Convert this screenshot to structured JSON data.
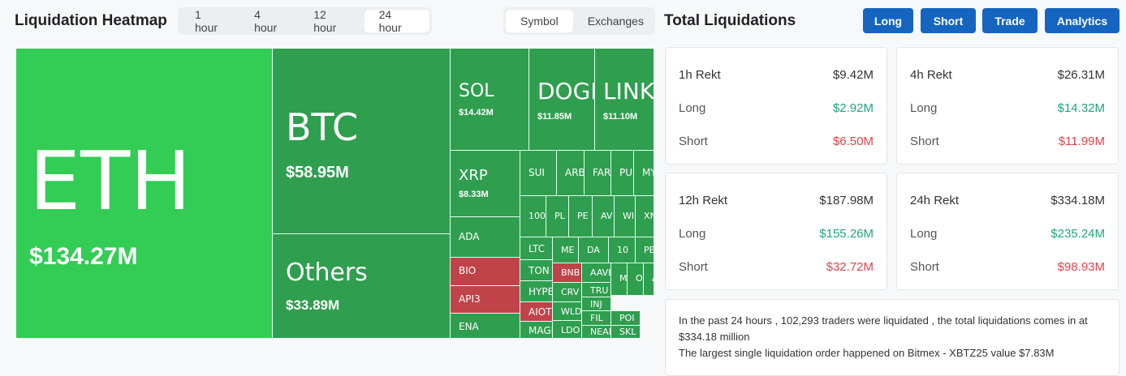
{
  "header": {
    "title": "Liquidation Heatmap",
    "time_tabs": [
      "1 hour",
      "4 hour",
      "12 hour",
      "24 hour"
    ],
    "view_tabs": [
      "Symbol",
      "Exchanges"
    ]
  },
  "heatmap": {
    "cells": [
      {
        "symbol": "ETH",
        "value": "$134.27M"
      },
      {
        "symbol": "BTC",
        "value": "$58.95M"
      },
      {
        "symbol": "Others",
        "value": "$33.89M"
      },
      {
        "symbol": "SOL",
        "value": "$14.42M"
      },
      {
        "symbol": "DOGE",
        "value": "$11.85M"
      },
      {
        "symbol": "LINK",
        "value": "$11.10M"
      },
      {
        "symbol": "XRP",
        "value": "$8.33M"
      },
      {
        "symbol": "ADA"
      },
      {
        "symbol": "BIO"
      },
      {
        "symbol": "API3"
      },
      {
        "symbol": "ENA"
      },
      {
        "symbol": "SUI"
      },
      {
        "symbol": "ARB"
      },
      {
        "symbol": "FAR"
      },
      {
        "symbol": "PU"
      },
      {
        "symbol": "MY"
      },
      {
        "symbol": "100"
      },
      {
        "symbol": "PL"
      },
      {
        "symbol": "PE"
      },
      {
        "symbol": "AV"
      },
      {
        "symbol": "WI"
      },
      {
        "symbol": "XN"
      },
      {
        "symbol": "LTC"
      },
      {
        "symbol": "ME"
      },
      {
        "symbol": "DA"
      },
      {
        "symbol": "10"
      },
      {
        "symbol": "PE"
      },
      {
        "symbol": "TON"
      },
      {
        "symbol": "HYPE"
      },
      {
        "symbol": "AIOT"
      },
      {
        "symbol": "MAGI"
      },
      {
        "symbol": "BNB"
      },
      {
        "symbol": "CRV"
      },
      {
        "symbol": "WLD"
      },
      {
        "symbol": "LDO"
      },
      {
        "symbol": "AAVE"
      },
      {
        "symbol": "TRU"
      },
      {
        "symbol": "INJ"
      },
      {
        "symbol": "FIL"
      },
      {
        "symbol": "NEAR"
      },
      {
        "symbol": "M"
      },
      {
        "symbol": "O"
      },
      {
        "symbol": "A"
      },
      {
        "symbol": "POI"
      },
      {
        "symbol": "SKL"
      }
    ]
  },
  "summary": {
    "title": "Total Liquidations",
    "buttons": [
      "Long",
      "Short",
      "Trade",
      "Analytics"
    ],
    "cards": [
      {
        "title": "1h Rekt",
        "total": "$9.42M",
        "rows": [
          {
            "label": "Long",
            "value": "$2.92M"
          },
          {
            "label": "Short",
            "value": "$6.50M"
          }
        ]
      },
      {
        "title": "4h Rekt",
        "total": "$26.31M",
        "rows": [
          {
            "label": "Long",
            "value": "$14.32M"
          },
          {
            "label": "Short",
            "value": "$11.99M"
          }
        ]
      },
      {
        "title": "12h Rekt",
        "total": "$187.98M",
        "rows": [
          {
            "label": "Long",
            "value": "$155.26M"
          },
          {
            "label": "Short",
            "value": "$32.72M"
          }
        ]
      },
      {
        "title": "24h Rekt",
        "total": "$334.18M",
        "rows": [
          {
            "label": "Long",
            "value": "$235.24M"
          },
          {
            "label": "Short",
            "value": "$98.93M"
          }
        ]
      }
    ],
    "note": [
      "In the past 24 hours , 102,293 traders were liquidated , the total liquidations comes in at $334.18 million",
      "The largest single liquidation order happened on Bitmex - XBTZ25 value $7.83M"
    ]
  }
}
